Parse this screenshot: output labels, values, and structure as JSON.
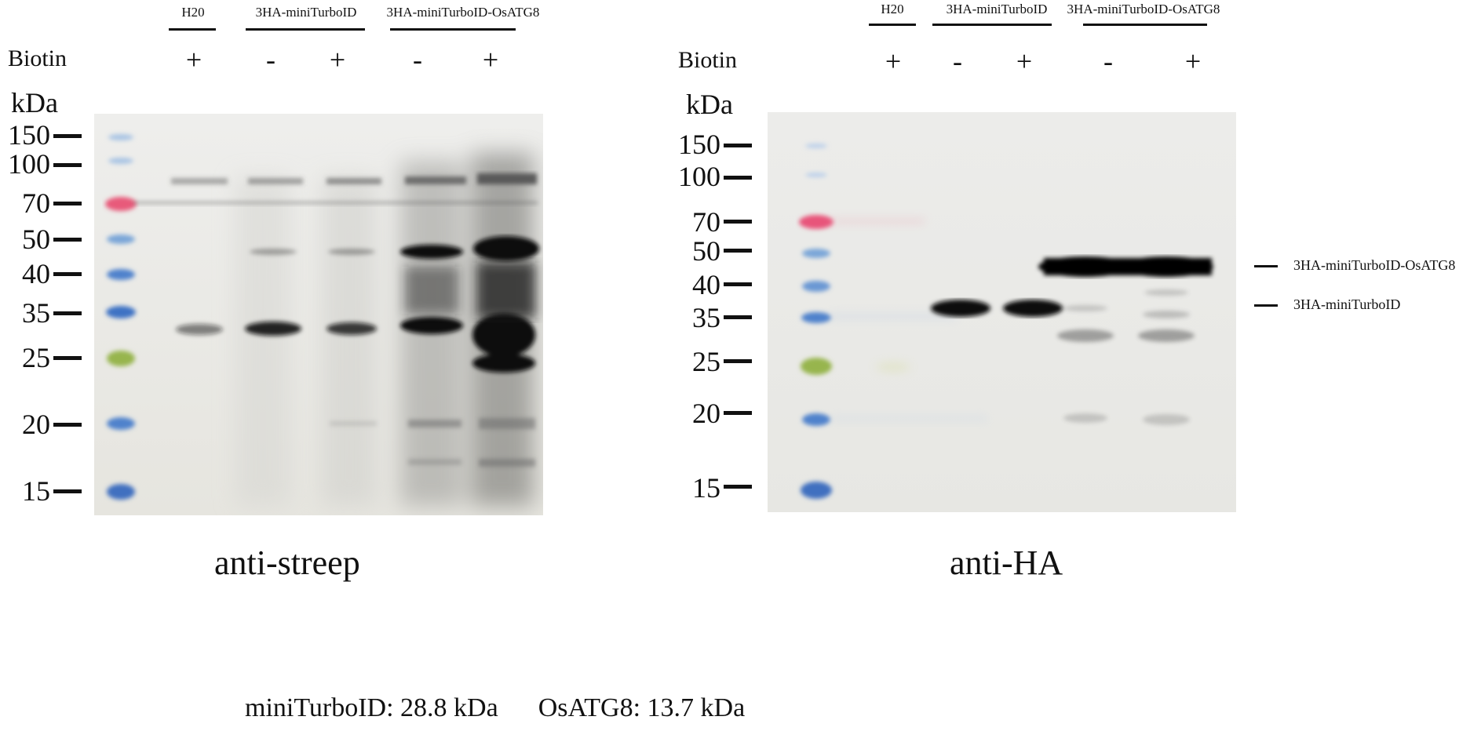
{
  "figure": {
    "footnote": "miniTurboID: 28.8 kDa      OsATG8: 13.7 kDa"
  },
  "left_panel": {
    "caption": "anti-streep",
    "row_label": "Biotin",
    "unit_label": "kDa",
    "groups": [
      "H20",
      "3HA-miniTurboID",
      "3HA-miniTurboID-OsATG8"
    ],
    "biotin_signs": [
      "+",
      "-",
      "+",
      "-",
      "+"
    ],
    "markers": [
      "150",
      "100",
      "70",
      "50",
      "40",
      "35",
      "25",
      "20",
      "15"
    ]
  },
  "right_panel": {
    "caption": "anti-HA",
    "row_label": "Biotin",
    "unit_label": "kDa",
    "groups": [
      "H20",
      "3HA-miniTurboID",
      "3HA-miniTurboID-OsATG8"
    ],
    "biotin_signs": [
      "+",
      "-",
      "+",
      "-",
      "+"
    ],
    "markers": [
      "150",
      "100",
      "70",
      "50",
      "40",
      "35",
      "25",
      "20",
      "15"
    ],
    "band_annotations": [
      "3HA-miniTurboID-OsATG8",
      "3HA-miniTurboID"
    ]
  }
}
